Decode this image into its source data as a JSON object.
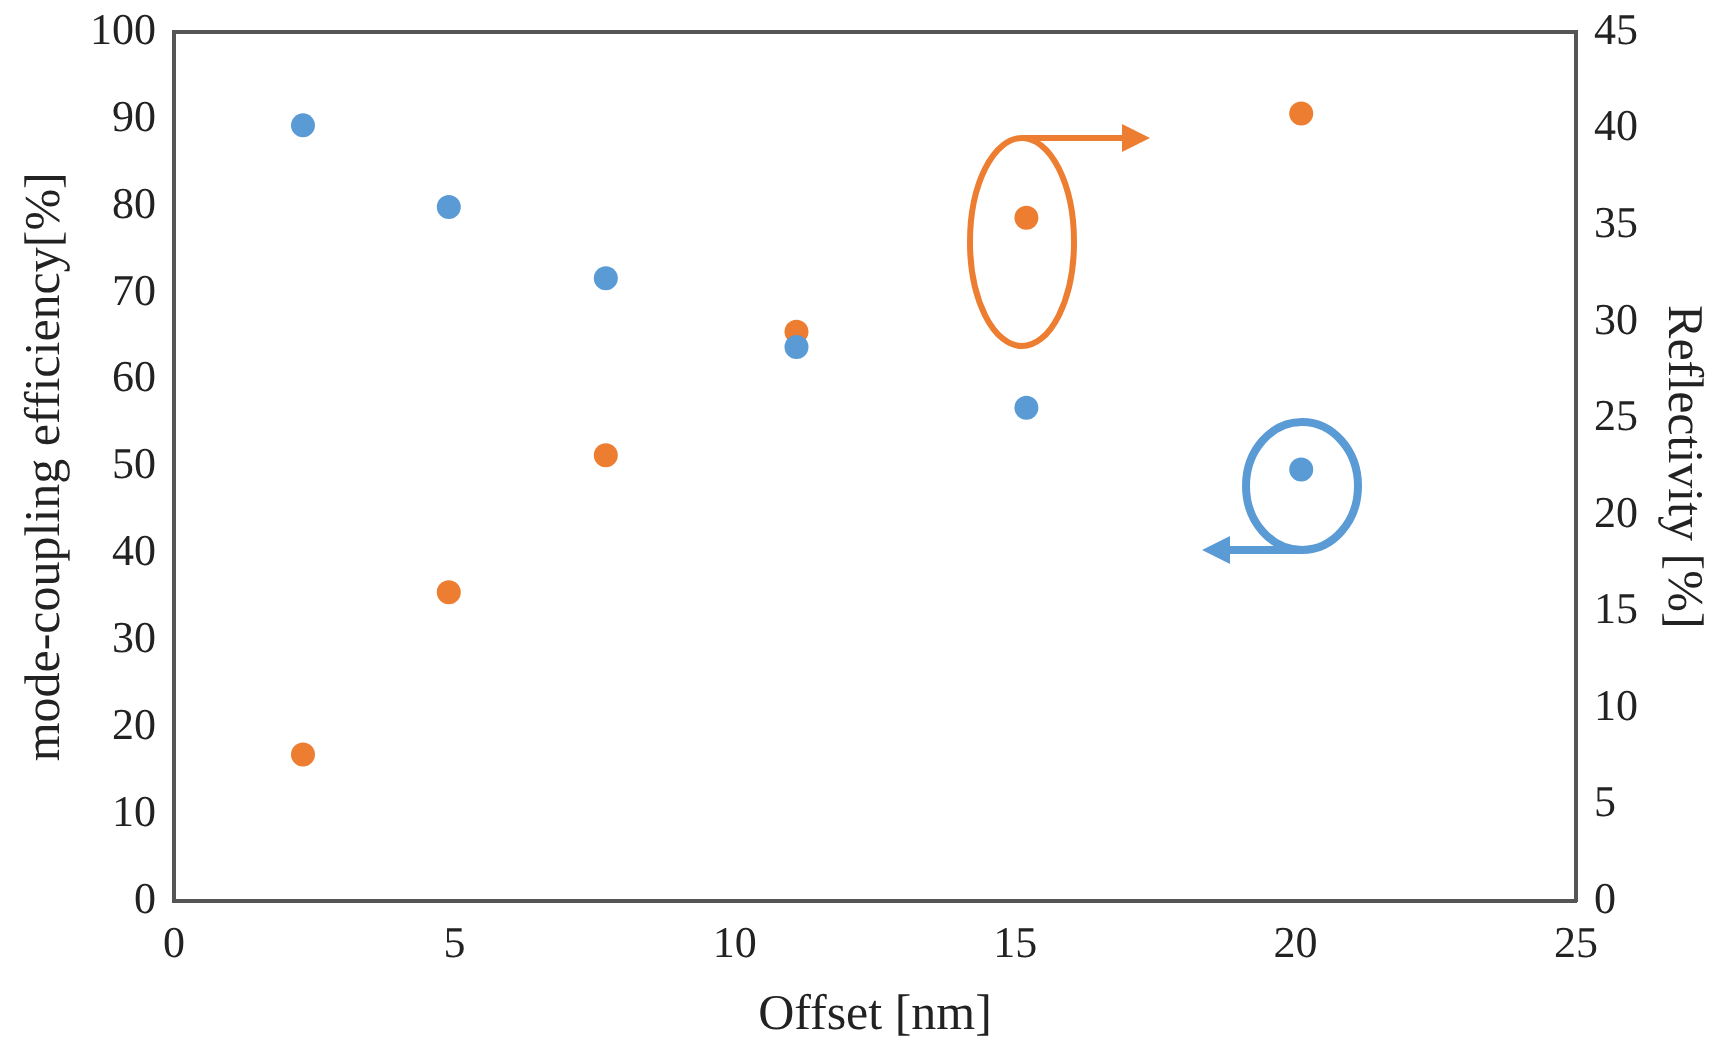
{
  "chart_data": {
    "type": "scatter",
    "xlabel": "Offset [nm]",
    "ylabel": "mode-coupling efficiency[%]",
    "y2label": "Reflectivity [%]",
    "xlim": [
      0,
      25
    ],
    "xticks": [
      0,
      5,
      10,
      15,
      20,
      25
    ],
    "ylim": [
      0,
      100
    ],
    "yticks": [
      0,
      10,
      20,
      30,
      40,
      50,
      60,
      70,
      80,
      90,
      100
    ],
    "y2lim": [
      0,
      45
    ],
    "y2ticks": [
      0,
      5,
      10,
      15,
      20,
      25,
      30,
      35,
      40,
      45
    ],
    "grid": false,
    "legend": false,
    "marker": "circle",
    "series": [
      {
        "color": "#5b9bd5",
        "x": [
          2.3,
          4.9,
          7.7,
          11.1,
          15.2,
          20.1
        ],
        "values": [
          89.3,
          79.9,
          71.7,
          63.8,
          56.8,
          49.7
        ]
      },
      {
        "color": "#ed7d31",
        "axis": "y2",
        "x": [
          2.3,
          4.9,
          7.7,
          11.1,
          15.2,
          20.1
        ],
        "values": [
          7.6,
          16.0,
          23.1,
          29.5,
          35.4,
          40.8
        ]
      }
    ]
  }
}
